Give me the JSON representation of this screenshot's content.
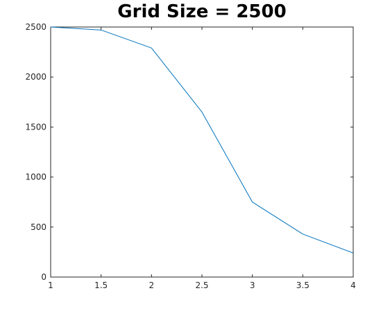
{
  "chart_data": {
    "type": "line",
    "title": "Grid Size = 2500",
    "xlabel": "",
    "ylabel": "",
    "x": [
      1,
      1.5,
      2,
      2.5,
      3,
      3.5,
      4
    ],
    "series": [
      {
        "values": [
          2500,
          2470,
          2290,
          1650,
          750,
          430,
          240
        ],
        "color": "#0072BD"
      }
    ],
    "xlim": [
      1,
      4
    ],
    "ylim": [
      0,
      2500
    ],
    "xticks": [
      1,
      1.5,
      2,
      2.5,
      3,
      3.5,
      4
    ],
    "xtick_labels": [
      "1",
      "1.5",
      "2",
      "2.5",
      "3",
      "3.5",
      "4"
    ],
    "yticks": [
      0,
      500,
      1000,
      1500,
      2000,
      2500
    ],
    "ytick_labels": [
      "0",
      "500",
      "1000",
      "1500",
      "2000",
      "2500"
    ],
    "grid": false,
    "box": true
  }
}
